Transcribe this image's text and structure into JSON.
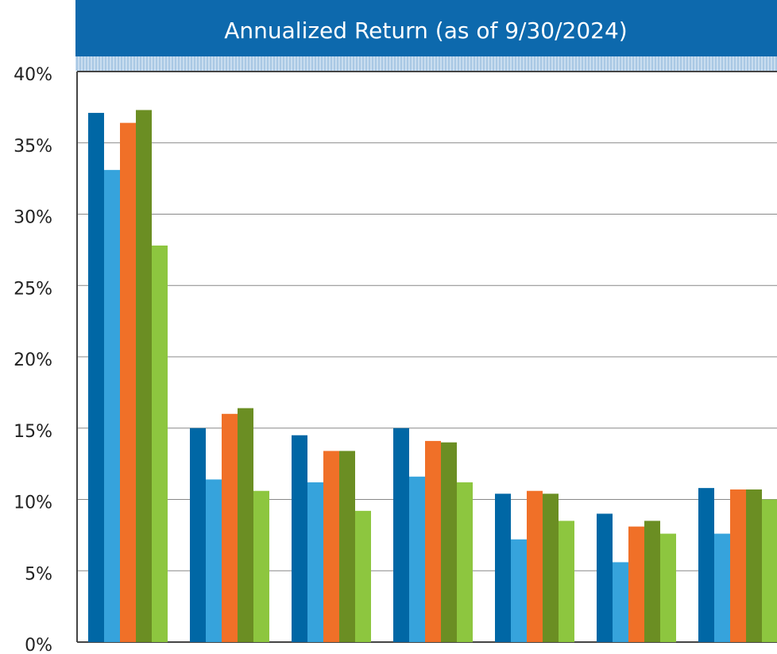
{
  "chart_data": {
    "type": "bar",
    "title": "Annualized Return (as of 9/30/2024)",
    "categories": [
      null,
      null,
      null,
      null,
      null,
      null,
      null
    ],
    "series": [
      {
        "color": "#0067a5",
        "values": [
          37.1,
          15.0,
          14.5,
          15.0,
          10.4,
          9.0,
          10.8
        ]
      },
      {
        "color": "#36a3dc",
        "values": [
          33.1,
          11.4,
          11.2,
          11.6,
          7.2,
          5.6,
          7.6
        ]
      },
      {
        "color": "#f07028",
        "values": [
          36.4,
          16.0,
          13.4,
          14.1,
          10.6,
          8.1,
          10.7
        ]
      },
      {
        "color": "#6b8e23",
        "values": [
          37.3,
          16.4,
          13.4,
          14.0,
          10.4,
          8.5,
          10.7
        ]
      },
      {
        "color": "#8dc63f",
        "values": [
          27.8,
          10.6,
          9.2,
          11.2,
          8.5,
          7.6,
          10.0
        ]
      }
    ],
    "ylim": [
      0,
      40
    ],
    "yticks": [
      {
        "value": 0,
        "label": "0%"
      },
      {
        "value": 5,
        "label": "5%"
      },
      {
        "value": 10,
        "label": "10%"
      },
      {
        "value": 15,
        "label": "15%"
      },
      {
        "value": 20,
        "label": "20%"
      },
      {
        "value": 25,
        "label": "25%"
      },
      {
        "value": 30,
        "label": "30%"
      },
      {
        "value": 35,
        "label": "35%"
      },
      {
        "value": 40,
        "label": "40%"
      }
    ],
    "grid": true
  }
}
